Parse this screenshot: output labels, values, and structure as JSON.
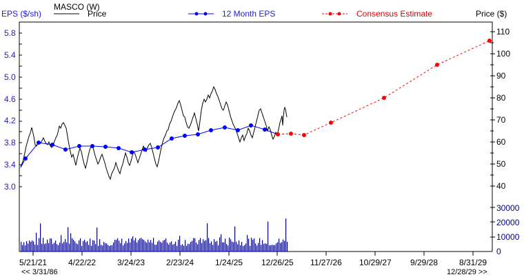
{
  "chart_data": {
    "type": "line",
    "title": "MASCO (W)",
    "left_axis": {
      "label": "EPS ($/sh)",
      "ticks": [
        5.8,
        5.4,
        5.0,
        4.6,
        4.2,
        3.8,
        3.4,
        3.0
      ],
      "range": [
        2.8,
        5.9
      ]
    },
    "right_axis": {
      "label": "Price ($)",
      "ticks": [
        110,
        100,
        90,
        80,
        70,
        60,
        50,
        40
      ]
    },
    "volume_axis": {
      "ticks": [
        30000,
        20000,
        10000,
        0
      ]
    },
    "x_ticks": [
      "5/21/21",
      "4/22/22",
      "3/24/23",
      "2/23/24",
      "1/24/25",
      "12/26/25",
      "11/27/26",
      "10/29/27",
      "9/29/28",
      "8/31/29"
    ],
    "x_range_start": "<< 3/31/86",
    "x_range_end": "12/28/29 >>",
    "legend": [
      {
        "name": "Price",
        "style": "solid black line"
      },
      {
        "name": "12 Month EPS",
        "style": "blue line with dots"
      },
      {
        "name": "Consensus Estimate",
        "style": "red dashed line with dots"
      }
    ],
    "series": [
      {
        "name": "12 Month EPS",
        "color": "#0000ff",
        "values": [
          3.52,
          3.81,
          3.77,
          3.68,
          3.74,
          3.74,
          3.73,
          3.7,
          3.63,
          3.68,
          3.71,
          3.88,
          3.93,
          3.95,
          4.03,
          4.08,
          4.03,
          4.12,
          4.04,
          3.95
        ]
      },
      {
        "name": "Consensus Estimate",
        "color": "#ff0000",
        "values": [
          3.95,
          3.96,
          3.94,
          4.17,
          4.62,
          5.22,
          5.66
        ]
      },
      {
        "name": "Price",
        "color": "#000000",
        "approx_range": [
          45,
          88
        ],
        "approx_recent": 72
      },
      {
        "name": "Volume",
        "color": "#000080",
        "approx_range": [
          3000,
          23000
        ],
        "typical": 9000
      }
    ],
    "grid": false
  },
  "labels": {
    "eps_axis": "EPS ($/sh)",
    "company": "MASCO (W)",
    "price_legend": "Price",
    "eps_legend": "12 Month EPS",
    "consensus_legend": "Consensus Estimate",
    "price_axis": "Price ($)",
    "start_date": "<< 3/31/86",
    "end_date": "12/28/29 >>"
  },
  "left_ticks": [
    "5.8",
    "5.4",
    "5.0",
    "4.6",
    "4.2",
    "3.8",
    "3.4",
    "3.0"
  ],
  "right_ticks": [
    "110",
    "100",
    "90",
    "80",
    "70",
    "60",
    "50",
    "40"
  ],
  "vol_ticks": [
    "30000",
    "20000",
    "10000",
    "0"
  ],
  "x_ticks": [
    "5/21/21",
    "4/22/22",
    "3/24/23",
    "2/23/24",
    "1/24/25",
    "12/26/25",
    "11/27/26",
    "10/29/27",
    "9/29/28",
    "8/31/29"
  ]
}
